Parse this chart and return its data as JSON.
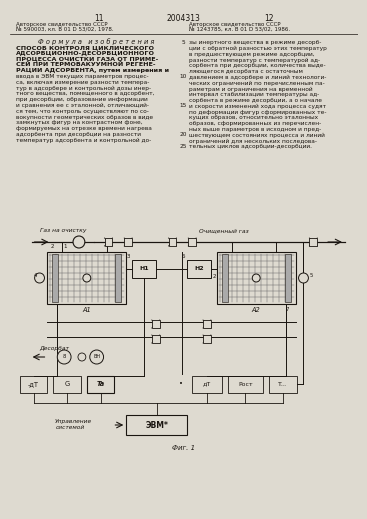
{
  "bg_color": "#dedad0",
  "text_color": "#1a1510",
  "page_left_num": "11",
  "page_right_num": "12",
  "patent_center": "2004313",
  "left_auth1": "Авторское свидетельство СССР",
  "left_auth2": "№ 590003, кл. B 01 D 53/02, 1978.",
  "right_auth1": "Авторское свидетельство СССР",
  "right_auth2": "№ 1243785, кл. B 01 D 53/02, 1986.",
  "formula_heading": "Ф о р м у л а   и з о б р е т е н и я",
  "left_col_lines": [
    "СПОСОБ КОНТРОЛЯ ЦИКЛИЧЕСКОГО",
    "АДСОРБЦИОННО-ДЕСОРБЦИОННОГО",
    "ПРОЦЕССА ОЧИСТКИ ГАЗА ОТ ПРИМЕ-",
    "СЕЙ ПРИ ТЕРМОВАКУУМНОЙ РЕГЕНЕ-",
    "РАЦИИ АДСОРБЕНТА, путем измерения и",
    "ввода в ЭВМ текущих параметров процес-",
    "са, включая измерение разности темпера-",
    "тур в адсорбере и контрольной дозы инер-",
    "тного вещества, помещенного в адсорбент,",
    "при десорбции, образование информации",
    "и сравнения ее с эталонной, отличающий-",
    "ся тем, что контроль осуществляют по со-",
    "вокупности геометрических образов в виде",
    "замкнутых фигур на контрастном фоне,",
    "формируемых на отрезке времени нагрева",
    "адсорбента при десорбции на разности",
    "температур адсорбента и контрольной до-"
  ],
  "right_col_lines": [
    "зы инертного вещества в режиме десорб-",
    "ции с обратной разностью этих температур",
    "в предшествующем режиме адсорбции,",
    "разности температур с температурой ад-",
    "сорбента при десорбции, количества выде-",
    "ляющегося десорбата с остаточным",
    "давлением в адсорбере и линий технологи-",
    "ческих ограничений по перечисленным па-",
    "раметрам и ограничения на временной",
    "интервал стабилизации температуры ад-",
    "сорбента в режиме десорбции, а о начале",
    "и скорости изменений хода процесса судят",
    "по деформации фигур сформированных те-",
    "кущих образов, относительно эталонных",
    "образов, сформированных из перечислен-",
    "ных выше параметров в исходном и пред-",
    "шествующем состояниях процесса и линий",
    "ограничений для нескольких последова-",
    "тельных циклов адсорбции-десорбции."
  ],
  "fig_label": "Фиг. 1",
  "label_gas_in": "Газ на очистку",
  "label_gas_out": "Очищенный газ",
  "label_desorb": "Десорбат",
  "label_control": "Управление",
  "label_system": "системой",
  "label_evm": "ЭВМ*",
  "label_A1": "A1",
  "label_A2": "A2",
  "label_H1": "H1",
  "label_H2": "H2"
}
